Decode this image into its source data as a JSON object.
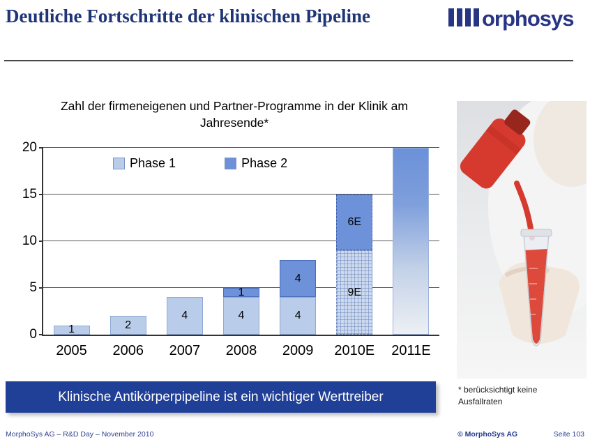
{
  "header": {
    "title": "Deutliche Fortschritte der klinischen Pipeline",
    "logo_text": "orphosys"
  },
  "chart_data": {
    "type": "bar",
    "stacked": true,
    "title": "Zahl der firmeneigenen und Partner-Programme in der Klinik am Jahresende*",
    "categories": [
      "2005",
      "2006",
      "2007",
      "2008",
      "2009",
      "2010E",
      "2011E"
    ],
    "series": [
      {
        "name": "Phase 1",
        "color": "#b9cce9",
        "values": [
          1,
          2,
          4,
          4,
          4,
          9,
          null
        ]
      },
      {
        "name": "Phase 2",
        "color": "#6d92d9",
        "values": [
          0,
          0,
          0,
          1,
          4,
          6,
          null
        ]
      }
    ],
    "totals": [
      1,
      2,
      4,
      5,
      8,
      15,
      20
    ],
    "bars": [
      {
        "category": "2005",
        "phase1": 1,
        "phase2": 0,
        "labels": {
          "phase1": "1"
        }
      },
      {
        "category": "2006",
        "phase1": 2,
        "phase2": 0,
        "labels": {
          "phase1": "2"
        }
      },
      {
        "category": "2007",
        "phase1": 4,
        "phase2": 0,
        "labels": {
          "phase1": "4"
        }
      },
      {
        "category": "2008",
        "phase1": 4,
        "phase2": 1,
        "labels": {
          "phase1": "4",
          "phase2": "1"
        }
      },
      {
        "category": "2009",
        "phase1": 4,
        "phase2": 4,
        "labels": {
          "phase1": "4",
          "phase2": "4"
        }
      },
      {
        "category": "2010E",
        "phase1": 9,
        "phase2": 6,
        "labels": {
          "phase1": "9E",
          "phase2": "6E"
        },
        "estimate": true
      },
      {
        "category": "2011E",
        "total": 20,
        "gradient": true
      }
    ],
    "ylim": [
      0,
      20
    ],
    "yticks": [
      0,
      5,
      10,
      15,
      20
    ],
    "grid": true,
    "legend_position": "top-inside"
  },
  "photo": {
    "footnote_line1": "* berücksichtigt keine",
    "footnote_line2": "Ausfallraten"
  },
  "banner": {
    "text": "Klinische Antikörperpipeline ist ein wichtiger Werttreiber"
  },
  "footer": {
    "left": "MorphoSys AG  –  R&D Day  –  November 2010",
    "copyright": "© MorphoSys AG",
    "page": "Seite 103"
  }
}
